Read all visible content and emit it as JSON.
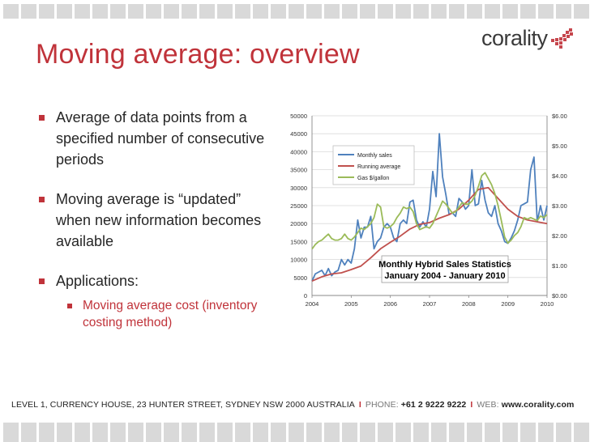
{
  "slide": {
    "title": "Moving average: overview",
    "logo_text": "corality",
    "bullets": [
      "Average of data points from a specified number of consecutive periods",
      "Moving average is “updated” when new information becomes available",
      "Applications:"
    ],
    "sub_bullets": [
      "Moving average cost (inventory costing method)"
    ],
    "footer": {
      "address": "LEVEL 1, CURRENCY HOUSE, 23 HUNTER STREET, SYDNEY NSW 2000 AUSTRALIA",
      "phone_label": "PHONE:",
      "phone": "+61 2 9222 9222",
      "web_label": "WEB:",
      "web": "www.corality.com"
    },
    "colors": {
      "accent": "#c0333a",
      "text": "#262626",
      "stripe": "#d9d9d9"
    }
  },
  "chart_data": {
    "type": "line",
    "title": "Monthly Hybrid Sales Statistics",
    "subtitle": "January 2004 - January 2010",
    "x_ticks": [
      "2004",
      "2005",
      "2006",
      "2007",
      "2008",
      "2009",
      "2010"
    ],
    "xlim": [
      2004,
      2010
    ],
    "y_left_ticks": [
      "0",
      "5000",
      "10000",
      "15000",
      "20000",
      "25000",
      "30000",
      "35000",
      "40000",
      "45000",
      "50000"
    ],
    "ylim_left": [
      0,
      50000
    ],
    "y_right_ticks": [
      "$0.00",
      "$1.00",
      "$2.00",
      "$3.00",
      "$4.00",
      "$5.00",
      "$6.00"
    ],
    "ylim_right": [
      0,
      6
    ],
    "grid": true,
    "legend_position": "top-left",
    "series": [
      {
        "name": "Monthly sales",
        "axis": "left",
        "color": "#4f81bd",
        "x": [
          2004.0,
          2004.083,
          2004.167,
          2004.25,
          2004.333,
          2004.417,
          2004.5,
          2004.583,
          2004.667,
          2004.75,
          2004.833,
          2004.917,
          2005.0,
          2005.083,
          2005.167,
          2005.25,
          2005.333,
          2005.417,
          2005.5,
          2005.583,
          2005.667,
          2005.75,
          2005.833,
          2005.917,
          2006.0,
          2006.083,
          2006.167,
          2006.25,
          2006.333,
          2006.417,
          2006.5,
          2006.583,
          2006.667,
          2006.75,
          2006.833,
          2006.917,
          2007.0,
          2007.083,
          2007.167,
          2007.25,
          2007.333,
          2007.417,
          2007.5,
          2007.583,
          2007.667,
          2007.75,
          2007.833,
          2007.917,
          2008.0,
          2008.083,
          2008.167,
          2008.25,
          2008.333,
          2008.417,
          2008.5,
          2008.583,
          2008.667,
          2008.75,
          2008.833,
          2008.917,
          2009.0,
          2009.083,
          2009.167,
          2009.25,
          2009.333,
          2009.417,
          2009.5,
          2009.583,
          2009.667,
          2009.75,
          2009.833,
          2009.917,
          2010.0
        ],
        "values": [
          4000,
          6000,
          6500,
          7000,
          5500,
          7500,
          5500,
          6500,
          7000,
          10000,
          8500,
          10000,
          9000,
          13000,
          21000,
          16000,
          19000,
          19000,
          22000,
          13000,
          15000,
          16000,
          19000,
          20000,
          19000,
          16000,
          15000,
          20000,
          21000,
          20000,
          26000,
          26500,
          21000,
          19000,
          20500,
          19000,
          24000,
          34500,
          27500,
          45000,
          33000,
          28000,
          22500,
          23000,
          22000,
          27000,
          26000,
          24000,
          25000,
          35000,
          25000,
          25500,
          32000,
          26500,
          23000,
          22000,
          25000,
          20000,
          18000,
          15000,
          14500,
          16000,
          18000,
          21000,
          25000,
          25500,
          26000,
          35000,
          38500,
          20500,
          25000,
          21000,
          25000
        ]
      },
      {
        "name": "Running average",
        "axis": "left",
        "color": "#c0504d",
        "x": [
          2004.0,
          2004.25,
          2004.5,
          2004.75,
          2005.0,
          2005.25,
          2005.5,
          2005.75,
          2006.0,
          2006.25,
          2006.5,
          2006.75,
          2007.0,
          2007.25,
          2007.5,
          2007.75,
          2008.0,
          2008.25,
          2008.5,
          2008.75,
          2009.0,
          2009.25,
          2009.5,
          2009.75,
          2010.0
        ],
        "values": [
          4000,
          5200,
          6000,
          6300,
          7200,
          8200,
          10500,
          13000,
          14800,
          16500,
          18500,
          19800,
          20300,
          21500,
          22500,
          24000,
          26500,
          29500,
          30000,
          27000,
          24000,
          22000,
          21000,
          20500,
          20000
        ]
      },
      {
        "name": "Gas $/gallon",
        "axis": "right",
        "color": "#9bbb59",
        "x": [
          2004.0,
          2004.083,
          2004.167,
          2004.25,
          2004.333,
          2004.417,
          2004.5,
          2004.583,
          2004.667,
          2004.75,
          2004.833,
          2004.917,
          2005.0,
          2005.083,
          2005.167,
          2005.25,
          2005.333,
          2005.417,
          2005.5,
          2005.583,
          2005.667,
          2005.75,
          2005.833,
          2005.917,
          2006.0,
          2006.083,
          2006.167,
          2006.25,
          2006.333,
          2006.417,
          2006.5,
          2006.583,
          2006.667,
          2006.75,
          2006.833,
          2006.917,
          2007.0,
          2007.083,
          2007.167,
          2007.25,
          2007.333,
          2007.417,
          2007.5,
          2007.583,
          2007.667,
          2007.75,
          2007.833,
          2007.917,
          2008.0,
          2008.083,
          2008.167,
          2008.25,
          2008.333,
          2008.417,
          2008.5,
          2008.583,
          2008.667,
          2008.75,
          2008.833,
          2008.917,
          2009.0,
          2009.083,
          2009.167,
          2009.25,
          2009.333,
          2009.417,
          2009.5,
          2009.583,
          2009.667,
          2009.75,
          2009.833,
          2009.917,
          2010.0
        ],
        "values": [
          1.55,
          1.7,
          1.8,
          1.85,
          1.95,
          2.05,
          1.9,
          1.85,
          1.85,
          1.9,
          2.05,
          1.9,
          1.85,
          1.95,
          2.1,
          2.25,
          2.2,
          2.3,
          2.4,
          2.6,
          3.05,
          2.95,
          2.3,
          2.25,
          2.3,
          2.4,
          2.6,
          2.75,
          2.95,
          2.9,
          2.95,
          2.8,
          2.4,
          2.2,
          2.25,
          2.3,
          2.25,
          2.4,
          2.65,
          2.9,
          3.15,
          3.05,
          2.9,
          2.75,
          2.8,
          2.95,
          3.1,
          3.05,
          3.05,
          3.15,
          3.35,
          3.65,
          4.0,
          4.1,
          3.9,
          3.7,
          3.4,
          3.0,
          2.5,
          1.95,
          1.75,
          1.85,
          2.0,
          2.1,
          2.3,
          2.6,
          2.55,
          2.6,
          2.55,
          2.5,
          2.65,
          2.6,
          2.7
        ]
      }
    ]
  }
}
